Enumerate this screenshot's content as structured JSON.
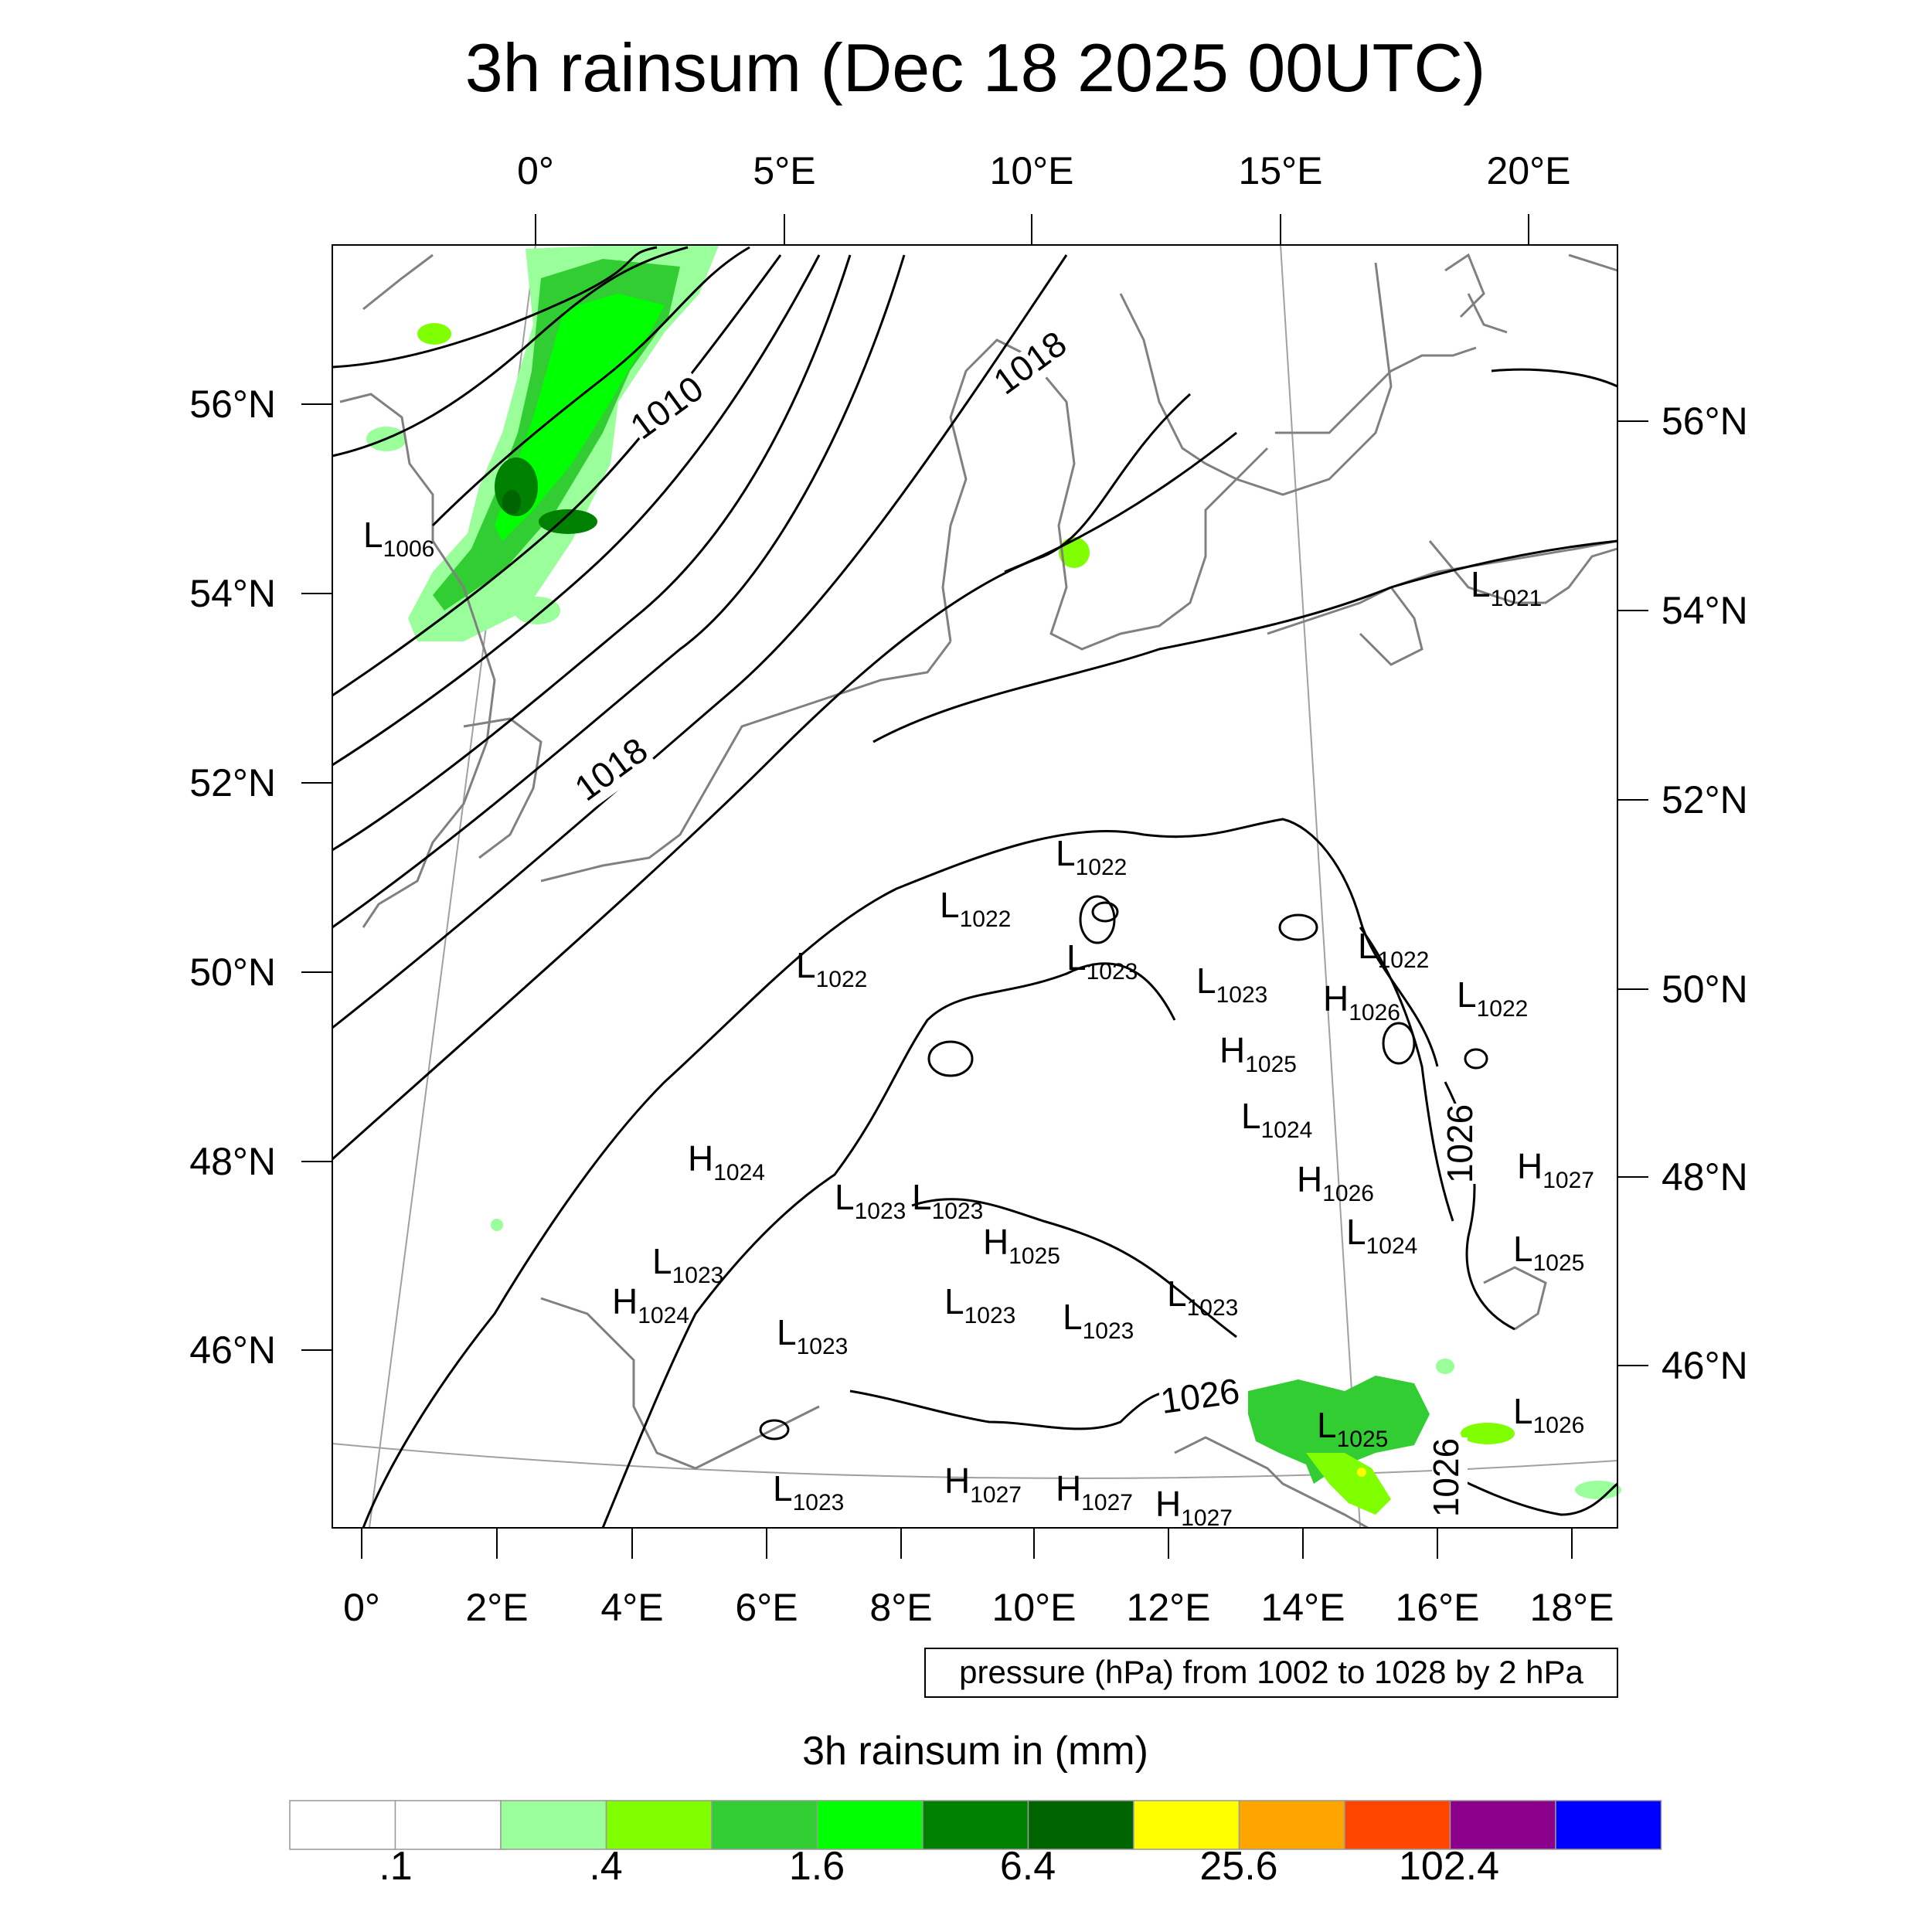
{
  "title": "3h rainsum (Dec 18 2025 00UTC)",
  "map": {
    "top_lon_labels": [
      "0°",
      "5°E",
      "10°E",
      "15°E",
      "20°E"
    ],
    "bottom_lon_labels": [
      "0°",
      "2°E",
      "4°E",
      "6°E",
      "8°E",
      "10°E",
      "12°E",
      "14°E",
      "16°E",
      "18°E"
    ],
    "left_lat_labels": [
      "56°N",
      "54°N",
      "52°N",
      "50°N",
      "48°N",
      "46°N"
    ],
    "right_lat_labels": [
      "56°N",
      "54°N",
      "52°N",
      "50°N",
      "48°N",
      "46°N"
    ],
    "isobar_labels": [
      "1010",
      "1018",
      "1018",
      "1026",
      "1026",
      "1026"
    ],
    "pressure_centers": [
      {
        "t": "L",
        "v": "1006"
      },
      {
        "t": "L",
        "v": "1021"
      },
      {
        "t": "L",
        "v": "1022"
      },
      {
        "t": "L",
        "v": "1022"
      },
      {
        "t": "L",
        "v": "1022"
      },
      {
        "t": "L",
        "v": "1023"
      },
      {
        "t": "L",
        "v": "1023"
      },
      {
        "t": "L",
        "v": "1022"
      },
      {
        "t": "L",
        "v": "1022"
      },
      {
        "t": "H",
        "v": "1026"
      },
      {
        "t": "H",
        "v": "1025"
      },
      {
        "t": "L",
        "v": "1024"
      },
      {
        "t": "H",
        "v": "1024"
      },
      {
        "t": "L",
        "v": "1023"
      },
      {
        "t": "L",
        "v": "1023"
      },
      {
        "t": "H",
        "v": "1025"
      },
      {
        "t": "L",
        "v": "1023"
      },
      {
        "t": "H",
        "v": "1024"
      },
      {
        "t": "L",
        "v": "1023"
      },
      {
        "t": "L",
        "v": "1023"
      },
      {
        "t": "L",
        "v": "1023"
      },
      {
        "t": "L",
        "v": "1023"
      },
      {
        "t": "H",
        "v": "1026"
      },
      {
        "t": "L",
        "v": "1024"
      },
      {
        "t": "H",
        "v": "1027"
      },
      {
        "t": "L",
        "v": "1025"
      },
      {
        "t": "L",
        "v": "1025"
      },
      {
        "t": "L",
        "v": "1026"
      },
      {
        "t": "L",
        "v": "1023"
      },
      {
        "t": "H",
        "v": "1027"
      },
      {
        "t": "H",
        "v": "1027"
      },
      {
        "t": "H",
        "v": "1027"
      }
    ]
  },
  "contour_note": "pressure (hPa) from 1002 to 1028 by 2 hPa",
  "colorbar": {
    "title": "3h rainsum in (mm)",
    "colors": [
      "#ffffff",
      "#ffffff",
      "#9aff9a",
      "#80ff00",
      "#32cd32",
      "#00ff00",
      "#008000",
      "#006400",
      "#ffff00",
      "#ffa500",
      "#ff4500",
      "#8b008b",
      "#0000ff"
    ],
    "labels": [
      ".1",
      ".4",
      "1.6",
      "6.4",
      "25.6",
      "102.4"
    ]
  },
  "colors": {
    "coastline": "#808080",
    "isobar": "#000000",
    "graticule": "#a0a0a0"
  }
}
